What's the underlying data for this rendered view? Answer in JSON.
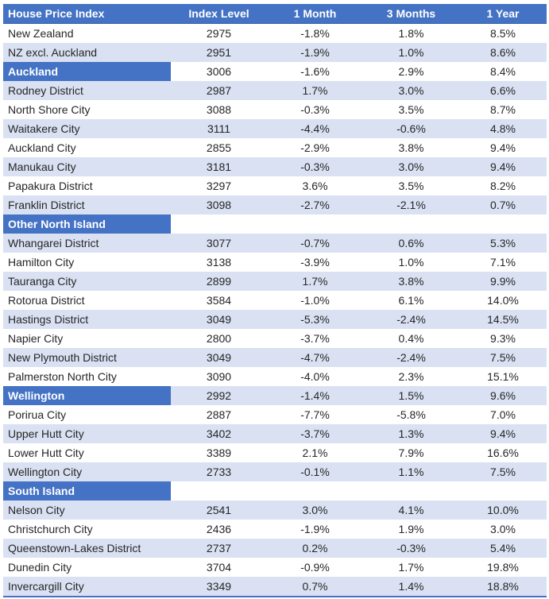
{
  "colors": {
    "header_bg": "#4472c4",
    "band_bg": "#d9e1f2",
    "section_bg": "#4472c4",
    "header_text": "#ffffff",
    "body_text": "#262626",
    "bottom_border": "#4472c4"
  },
  "chart_data": {
    "type": "table",
    "title": "House Price Index",
    "columns": [
      "House Price Index",
      "Index Level",
      "1 Month",
      "3 Months",
      "1 Year"
    ],
    "rows": [
      {
        "name": "New Zealand",
        "section": false,
        "index_level": "2975",
        "m1": "-1.8%",
        "m3": "1.8%",
        "y1": "8.5%"
      },
      {
        "name": "NZ excl. Auckland",
        "section": false,
        "index_level": "2951",
        "m1": "-1.9%",
        "m3": "1.0%",
        "y1": "8.6%"
      },
      {
        "name": "Auckland",
        "section": true,
        "index_level": "3006",
        "m1": "-1.6%",
        "m3": "2.9%",
        "y1": "8.4%"
      },
      {
        "name": "Rodney District",
        "section": false,
        "index_level": "2987",
        "m1": "1.7%",
        "m3": "3.0%",
        "y1": "6.6%"
      },
      {
        "name": "North Shore City",
        "section": false,
        "index_level": "3088",
        "m1": "-0.3%",
        "m3": "3.5%",
        "y1": "8.7%"
      },
      {
        "name": "Waitakere City",
        "section": false,
        "index_level": "3111",
        "m1": "-4.4%",
        "m3": "-0.6%",
        "y1": "4.8%"
      },
      {
        "name": "Auckland City",
        "section": false,
        "index_level": "2855",
        "m1": "-2.9%",
        "m3": "3.8%",
        "y1": "9.4%"
      },
      {
        "name": "Manukau City",
        "section": false,
        "index_level": "3181",
        "m1": "-0.3%",
        "m3": "3.0%",
        "y1": "9.4%"
      },
      {
        "name": "Papakura District",
        "section": false,
        "index_level": "3297",
        "m1": "3.6%",
        "m3": "3.5%",
        "y1": "8.2%"
      },
      {
        "name": "Franklin District",
        "section": false,
        "index_level": "3098",
        "m1": "-2.7%",
        "m3": "-2.1%",
        "y1": "0.7%"
      },
      {
        "name": "Other North Island",
        "section": true,
        "index_level": "",
        "m1": "",
        "m3": "",
        "y1": ""
      },
      {
        "name": "Whangarei District",
        "section": false,
        "index_level": "3077",
        "m1": "-0.7%",
        "m3": "0.6%",
        "y1": "5.3%"
      },
      {
        "name": "Hamilton City",
        "section": false,
        "index_level": "3138",
        "m1": "-3.9%",
        "m3": "1.0%",
        "y1": "7.1%"
      },
      {
        "name": "Tauranga City",
        "section": false,
        "index_level": "2899",
        "m1": "1.7%",
        "m3": "3.8%",
        "y1": "9.9%"
      },
      {
        "name": "Rotorua District",
        "section": false,
        "index_level": "3584",
        "m1": "-1.0%",
        "m3": "6.1%",
        "y1": "14.0%"
      },
      {
        "name": "Hastings District",
        "section": false,
        "index_level": "3049",
        "m1": "-5.3%",
        "m3": "-2.4%",
        "y1": "14.5%"
      },
      {
        "name": "Napier City",
        "section": false,
        "index_level": "2800",
        "m1": "-3.7%",
        "m3": "0.4%",
        "y1": "9.3%"
      },
      {
        "name": "New Plymouth District",
        "section": false,
        "index_level": "3049",
        "m1": "-4.7%",
        "m3": "-2.4%",
        "y1": "7.5%"
      },
      {
        "name": "Palmerston North City",
        "section": false,
        "index_level": "3090",
        "m1": "-4.0%",
        "m3": "2.3%",
        "y1": "15.1%"
      },
      {
        "name": "Wellington",
        "section": true,
        "index_level": "2992",
        "m1": "-1.4%",
        "m3": "1.5%",
        "y1": "9.6%"
      },
      {
        "name": "Porirua City",
        "section": false,
        "index_level": "2887",
        "m1": "-7.7%",
        "m3": "-5.8%",
        "y1": "7.0%"
      },
      {
        "name": "Upper Hutt City",
        "section": false,
        "index_level": "3402",
        "m1": "-3.7%",
        "m3": "1.3%",
        "y1": "9.4%"
      },
      {
        "name": "Lower Hutt City",
        "section": false,
        "index_level": "3389",
        "m1": "2.1%",
        "m3": "7.9%",
        "y1": "16.6%"
      },
      {
        "name": "Wellington City",
        "section": false,
        "index_level": "2733",
        "m1": "-0.1%",
        "m3": "1.1%",
        "y1": "7.5%"
      },
      {
        "name": "South Island",
        "section": true,
        "index_level": "",
        "m1": "",
        "m3": "",
        "y1": ""
      },
      {
        "name": "Nelson City",
        "section": false,
        "index_level": "2541",
        "m1": "3.0%",
        "m3": "4.1%",
        "y1": "10.0%"
      },
      {
        "name": "Christchurch City",
        "section": false,
        "index_level": "2436",
        "m1": "-1.9%",
        "m3": "1.9%",
        "y1": "3.0%"
      },
      {
        "name": "Queenstown-Lakes District",
        "section": false,
        "index_level": "2737",
        "m1": "0.2%",
        "m3": "-0.3%",
        "y1": "5.4%"
      },
      {
        "name": "Dunedin City",
        "section": false,
        "index_level": "3704",
        "m1": "-0.9%",
        "m3": "1.7%",
        "y1": "19.8%"
      },
      {
        "name": "Invercargill City",
        "section": false,
        "index_level": "3349",
        "m1": "0.7%",
        "m3": "1.4%",
        "y1": "18.8%"
      }
    ]
  }
}
